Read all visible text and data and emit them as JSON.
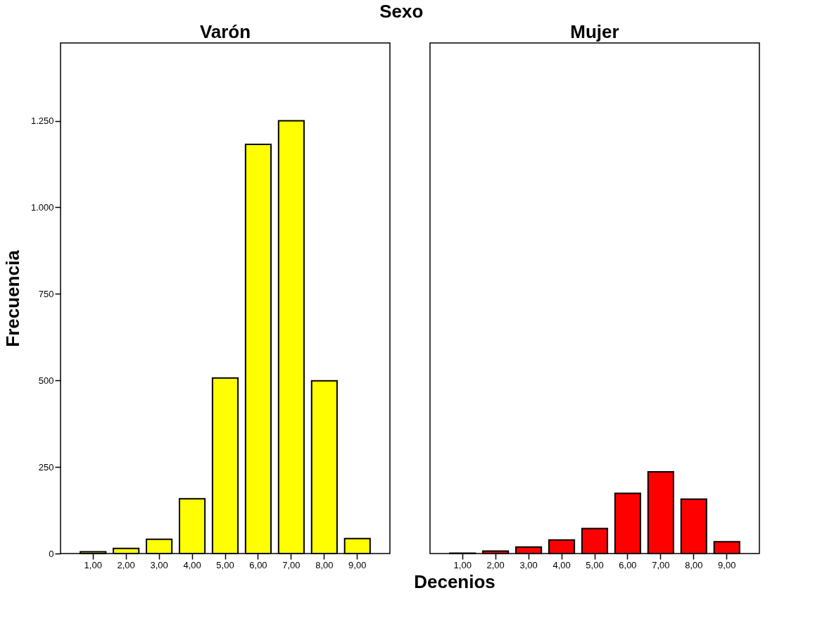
{
  "chart_data": [
    {
      "type": "bar",
      "title": "Varón",
      "annotations": [
        "Sexo"
      ],
      "xlabel": "Decenios",
      "ylabel": "Frecuencia",
      "categories": [
        "1,00",
        "2,00",
        "3,00",
        "4,00",
        "5,00",
        "6,00",
        "7,00",
        "8,00",
        "9,00"
      ],
      "values": [
        5,
        15,
        41,
        158,
        507,
        1182,
        1250,
        499,
        43
      ],
      "color": "#ffff00",
      "ylim": [
        0,
        1475
      ],
      "yticks": [
        0,
        {
          "value": 250,
          "label": "250"
        },
        {
          "value": 500,
          "label": "500"
        },
        {
          "value": 750,
          "label": "750"
        },
        {
          "value": 1000,
          "label": "1.000"
        },
        {
          "value": 1250,
          "label": "1.250"
        }
      ],
      "grid": false
    },
    {
      "type": "bar",
      "title": "Mujer",
      "categories": [
        "1,00",
        "2,00",
        "3,00",
        "4,00",
        "5,00",
        "6,00",
        "7,00",
        "8,00",
        "9,00"
      ],
      "values": [
        1,
        7,
        19,
        39,
        72,
        174,
        236,
        157,
        34
      ],
      "color": "#ff0000",
      "ylim": [
        0,
        1475
      ],
      "grid": false,
      "tick_labels": "x"
    }
  ]
}
